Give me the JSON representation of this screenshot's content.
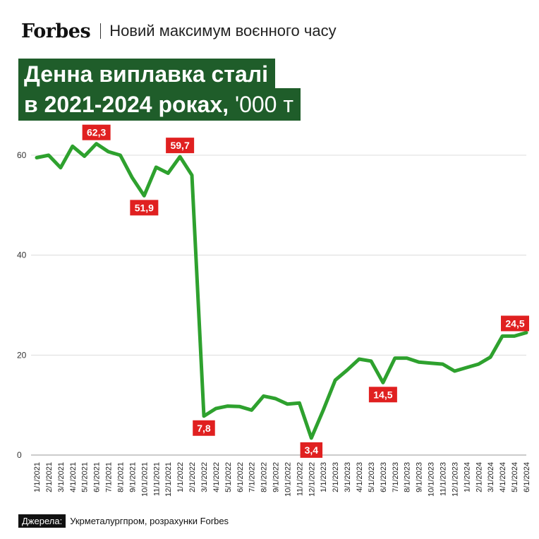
{
  "header": {
    "brand": "Forbes",
    "subtitle": "Новий максимум воєнного часу"
  },
  "title": {
    "line1": "Денна виплавка сталі",
    "line2": "в 2021-2024 роках,",
    "unit": " '000 т"
  },
  "source": {
    "label": "Джерела:",
    "text": "Укрметалургпром, розрахунки Forbes"
  },
  "colors": {
    "line": "#2ea12e",
    "label_bg": "#e02020",
    "title_bg": "#1f5d2a"
  },
  "chart_data": {
    "type": "line",
    "ylim": [
      0,
      65
    ],
    "yticks": [
      0,
      20,
      40,
      60
    ],
    "grid": true,
    "categories": [
      "1/1/2021",
      "2/1/2021",
      "3/1/2021",
      "4/1/2021",
      "5/1/2021",
      "6/1/2021",
      "7/1/2021",
      "8/1/2021",
      "9/1/2021",
      "10/1/2021",
      "11/1/2021",
      "12/1/2021",
      "1/1/2022",
      "2/1/2022",
      "3/1/2022",
      "4/1/2022",
      "5/1/2022",
      "6/1/2022",
      "7/1/2022",
      "8/1/2022",
      "9/1/2022",
      "10/1/2022",
      "11/1/2022",
      "12/1/2022",
      "1/1/2023",
      "2/1/2023",
      "3/1/2023",
      "4/1/2023",
      "5/1/2023",
      "6/1/2023",
      "7/1/2023",
      "8/1/2023",
      "9/1/2023",
      "10/1/2023",
      "11/1/2023",
      "12/1/2023",
      "1/1/2024",
      "2/1/2024",
      "3/1/2024",
      "4/1/2024",
      "5/1/2024",
      "6/1/2024"
    ],
    "series": [
      {
        "values": [
          59.5,
          60,
          57.5,
          61.8,
          59.8,
          62.3,
          60.7,
          60.0,
          55.5,
          51.9,
          57.6,
          56.4,
          59.7,
          56.0,
          7.8,
          9.3,
          9.8,
          9.7,
          9.0,
          11.8,
          11.3,
          10.2,
          10.4,
          3.4,
          9.0,
          15.0,
          17.0,
          19.2,
          18.8,
          14.5,
          19.4,
          19.4,
          18.6,
          18.4,
          18.2,
          16.8,
          17.5,
          18.2,
          19.6,
          23.8,
          23.8,
          24.5
        ]
      }
    ],
    "annotations": [
      {
        "index": 5,
        "text": "62,3",
        "position": "above"
      },
      {
        "index": 9,
        "text": "51,9",
        "position": "below"
      },
      {
        "index": 12,
        "text": "59,7",
        "position": "above"
      },
      {
        "index": 14,
        "text": "7,8",
        "position": "below"
      },
      {
        "index": 23,
        "text": "3,4",
        "position": "below"
      },
      {
        "index": 29,
        "text": "14,5",
        "position": "below"
      },
      {
        "index": 41,
        "text": "24,5",
        "position": "above-left"
      }
    ]
  }
}
